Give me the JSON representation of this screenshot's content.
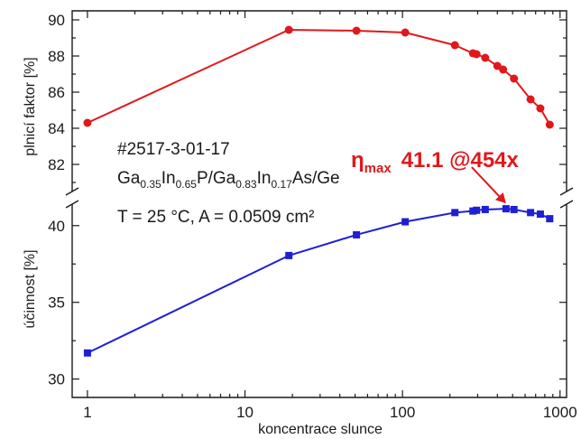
{
  "chart_data": {
    "type": "line",
    "x_scale": "log",
    "xlabel": "koncentrace slunce",
    "x_ticks": [
      1,
      10,
      100,
      1000
    ],
    "x_tick_labels": [
      "1",
      "10",
      "100",
      "1000"
    ],
    "xlim": [
      0.8,
      1100
    ],
    "grid": false,
    "panels": [
      {
        "id": "top",
        "ylabel": "plnicí faktor [%]",
        "ylim": [
          80.5,
          90.5
        ],
        "y_ticks": [
          82,
          84,
          86,
          88,
          90
        ],
        "y_tick_labels": [
          "82",
          "84",
          "86",
          "88",
          "90"
        ],
        "series": [
          {
            "color": "#e0181b",
            "marker": "circle",
            "x": [
              1,
              19,
              51,
              104,
              215,
              280,
              295,
              335,
              400,
              435,
              510,
              650,
              750,
              860
            ],
            "y": [
              84.3,
              89.45,
              89.4,
              89.3,
              88.6,
              88.15,
              88.1,
              87.9,
              87.45,
              87.25,
              86.75,
              85.6,
              85.1,
              84.2
            ]
          }
        ]
      },
      {
        "id": "bottom",
        "ylabel": "účinnost [%]",
        "ylim": [
          28.8,
          41.4
        ],
        "y_ticks": [
          30,
          35,
          40
        ],
        "y_tick_labels": [
          "30",
          "35",
          "40"
        ],
        "series": [
          {
            "color": "#1f1fd6",
            "marker": "square",
            "x": [
              1,
              19,
              51,
              104,
              215,
              280,
              295,
              335,
              454,
              510,
              650,
              750,
              860
            ],
            "y": [
              31.7,
              38.05,
              39.4,
              40.25,
              40.85,
              40.95,
              41.0,
              41.05,
              41.1,
              41.05,
              40.85,
              40.75,
              40.45
            ]
          }
        ]
      }
    ],
    "annotations": {
      "line1": "#2517-3-01-17",
      "line2": [
        {
          "t": "Ga",
          "sub": false
        },
        {
          "t": "0.35",
          "sub": true
        },
        {
          "t": "In",
          "sub": false
        },
        {
          "t": "0.65",
          "sub": true
        },
        {
          "t": "P/Ga",
          "sub": false
        },
        {
          "t": "0.83",
          "sub": true
        },
        {
          "t": "In",
          "sub": false
        },
        {
          "t": "0.17",
          "sub": true
        },
        {
          "t": "As/Ge",
          "sub": false
        }
      ],
      "line3": "T = 25 °C, A = 0.0509 cm²",
      "eta_symbol": "η",
      "eta_sub": "max",
      "eta_value": "41.1 @454x",
      "arrow_target": {
        "x": 454,
        "y": 41.1
      }
    }
  }
}
